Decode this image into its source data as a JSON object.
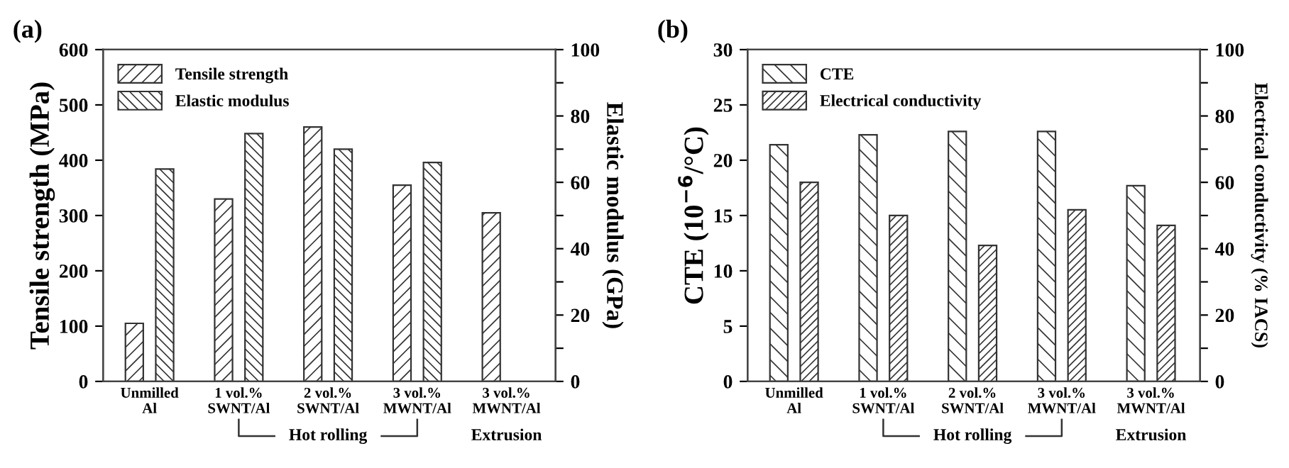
{
  "chart_data": [
    {
      "type": "bar",
      "title": "(a)",
      "categories": [
        "Unmilled\nAl",
        "1 vol.%\nSWNT/Al",
        "2 vol.%\nSWNT/Al",
        "3 vol.%\nMWNT/Al",
        "3 vol.%\nMWNT/Al"
      ],
      "series": [
        {
          "name": "Tensile strength",
          "color": "#333333",
          "values": [
            105,
            330,
            460,
            355,
            305
          ]
        },
        {
          "name": "Elastic modulus",
          "color": "#333333",
          "axis": "y2",
          "values": [
            64,
            74.7,
            70,
            66,
            null
          ]
        }
      ],
      "ylabel": "Tensile strength (MPa)",
      "y2label": "Elastic modulus (GPa)",
      "ylim": [
        0,
        600
      ],
      "yticks": [
        0,
        100,
        200,
        300,
        400,
        500,
        600
      ],
      "y2lim": [
        0,
        100
      ],
      "y2ticks": [
        0,
        {
          "value": 10,
          "label": null
        },
        20,
        {
          "value": 30,
          "label": null
        },
        40,
        {
          "value": 50,
          "label": null
        },
        60,
        {
          "value": 70,
          "label": null
        },
        80,
        {
          "value": 90,
          "label": null
        },
        100
      ],
      "legend": "top left",
      "grid": false,
      "annotations": [
        "Hot rolling",
        "Extrusion"
      ]
    },
    {
      "type": "bar",
      "title": "(b)",
      "categories": [
        "Unmilled\nAl",
        "1 vol.%\nSWNT/Al",
        "2 vol.%\nSWNT/Al",
        "3 vol.%\nMWNT/Al",
        "3 vol.%\nMWNT/Al"
      ],
      "series": [
        {
          "name": "CTE",
          "color": "#333333",
          "values": [
            21.4,
            22.3,
            22.6,
            22.6,
            17.7
          ]
        },
        {
          "name": "Electrical conductivity",
          "color": "#333333",
          "axis": "y2",
          "values": [
            60,
            50,
            41,
            51.7,
            47
          ]
        }
      ],
      "ylabel": "CTE (10$^{−6}$/°C)",
      "y2label": "Electrical conductivity (% IACS)",
      "ylim": [
        0,
        30
      ],
      "yticks": [
        0,
        5,
        10,
        15,
        20,
        25,
        30
      ],
      "y2lim": [
        0,
        100
      ],
      "y2ticks": [
        0,
        {
          "value": 10,
          "label": null
        },
        20,
        {
          "value": 30,
          "label": null
        },
        40,
        {
          "value": 50,
          "label": null
        },
        60,
        {
          "value": 70,
          "label": null
        },
        80,
        {
          "value": 90,
          "label": null
        },
        100
      ],
      "legend": "top left",
      "grid": false,
      "annotations": [
        "Hot rolling",
        "Extrusion"
      ]
    }
  ]
}
